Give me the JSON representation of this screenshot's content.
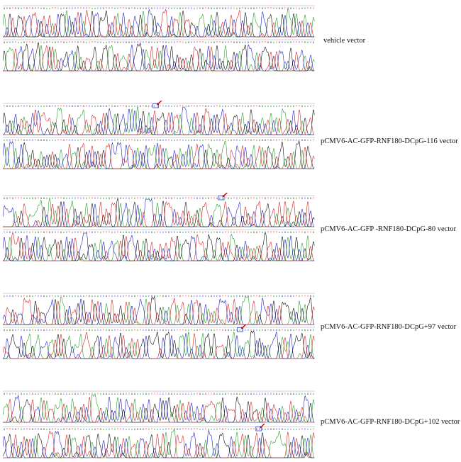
{
  "panels": [
    {
      "label": "vehicle vector",
      "marker_row": null,
      "marker_pos": null
    },
    {
      "label": "pCMV6-AC-GFP-RNF180-DCpG-116 vector",
      "marker_row": 0,
      "marker_pos": 0.49
    },
    {
      "label": "pCMV6-AC-GFP -RNF180-DCpG-80 vector",
      "marker_row": 0,
      "marker_pos": 0.7
    },
    {
      "label": "pCMV6-AC-GFP-RNF180-DCpG+97 vector",
      "marker_row": 1,
      "marker_pos": 0.76
    },
    {
      "label": "pCMV6-AC-GFP-RNF180-DCpG+102 vector",
      "marker_row": 1,
      "marker_pos": 0.82
    }
  ],
  "colors": {
    "A": "#2ca02c",
    "C": "#2222cc",
    "G": "#111111",
    "T": "#d62728",
    "marker": "#cc0000",
    "box": "#3344cc"
  }
}
